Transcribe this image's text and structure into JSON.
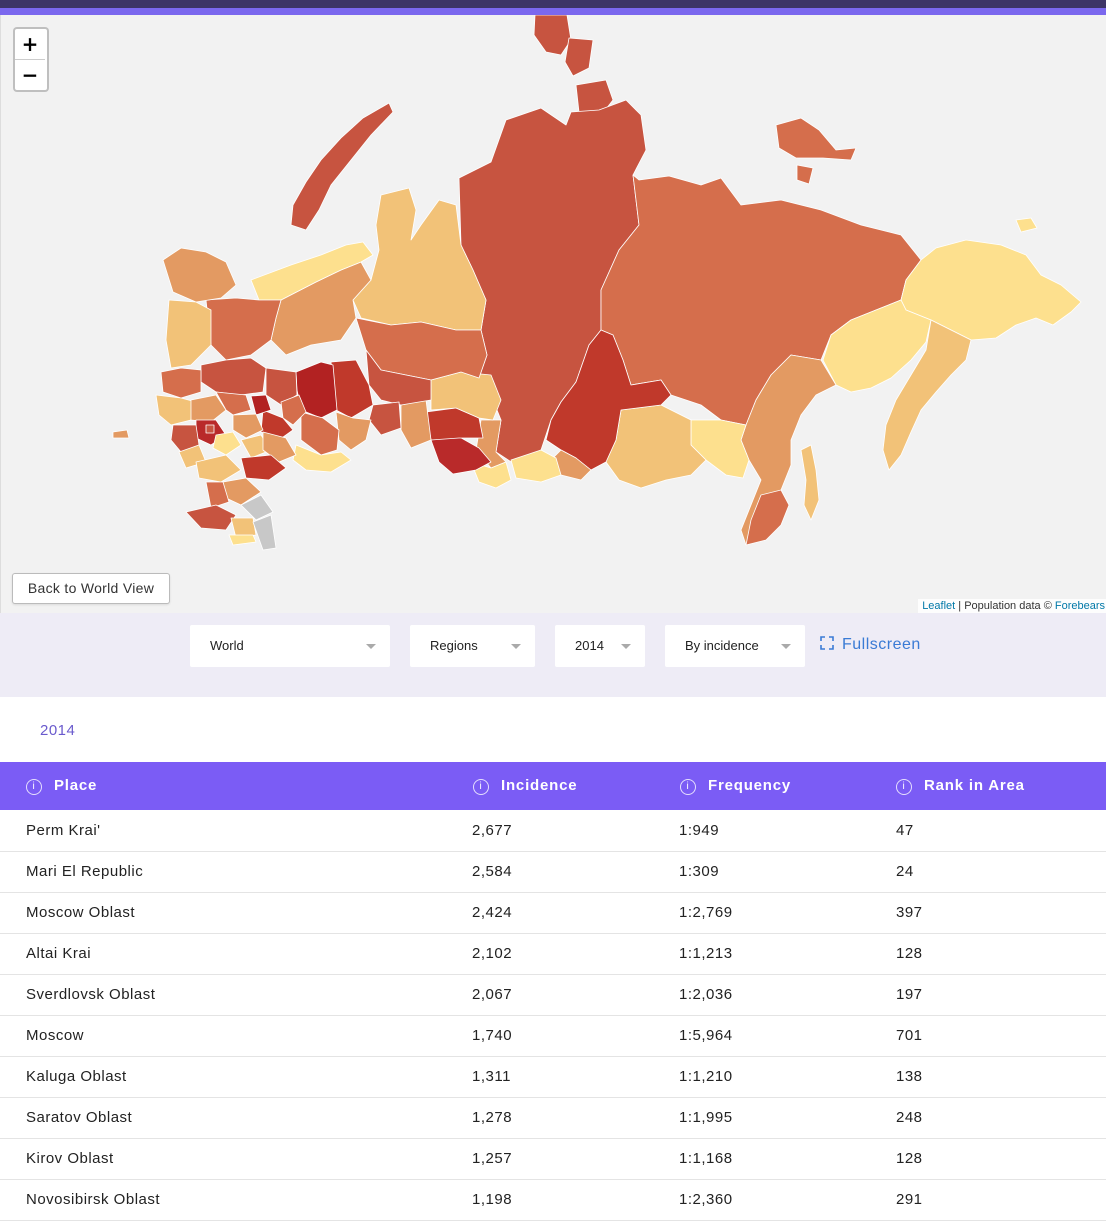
{
  "map": {
    "zoom_in": "+",
    "zoom_out": "−",
    "back_button": "Back to World View",
    "attribution": {
      "leaflet": "Leaflet",
      "separator": " | Population data © ",
      "source": "Forebears"
    }
  },
  "controls": {
    "region_scope": "World",
    "level": "Regions",
    "year": "2014",
    "mode": "By incidence",
    "fullscreen": "Fullscreen"
  },
  "table": {
    "year": "2014",
    "headers": [
      "Place",
      "Incidence",
      "Frequency",
      "Rank in Area"
    ],
    "rows": [
      [
        "Perm Krai'",
        "2,677",
        "1:949",
        "47"
      ],
      [
        "Mari El Republic",
        "2,584",
        "1:309",
        "24"
      ],
      [
        "Moscow Oblast",
        "2,424",
        "1:2,769",
        "397"
      ],
      [
        "Altai Krai",
        "2,102",
        "1:1,213",
        "128"
      ],
      [
        "Sverdlovsk Oblast",
        "2,067",
        "1:2,036",
        "197"
      ],
      [
        "Moscow",
        "1,740",
        "1:5,964",
        "701"
      ],
      [
        "Kaluga Oblast",
        "1,311",
        "1:1,210",
        "138"
      ],
      [
        "Saratov Oblast",
        "1,278",
        "1:1,995",
        "248"
      ],
      [
        "Kirov Oblast",
        "1,257",
        "1:1,168",
        "128"
      ],
      [
        "Novosibirsk Oblast",
        "1,198",
        "1:2,360",
        "291"
      ]
    ]
  },
  "colors": {
    "top_bar": "#3d3566",
    "accent": "#7b68ee",
    "table_header": "#7b5cf5",
    "choropleth_scale": [
      "#fde08e",
      "#f2c278",
      "#e39a62",
      "#d56e4c",
      "#c75440",
      "#b92a2a"
    ]
  }
}
